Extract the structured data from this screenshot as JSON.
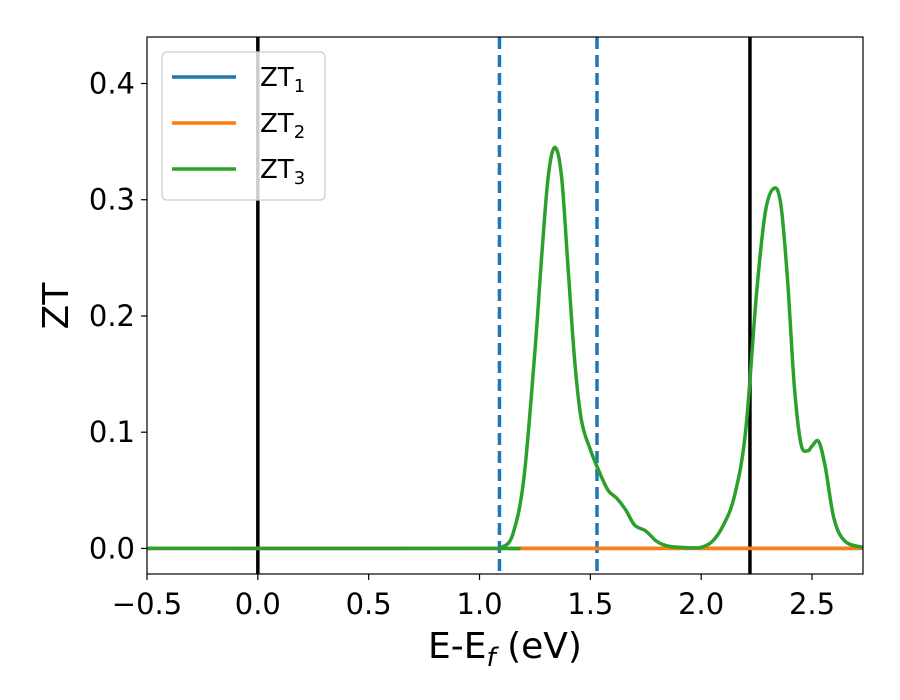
{
  "chart_data": {
    "type": "line",
    "xlabel_main": "E-E",
    "xlabel_sub": "f",
    "xlabel_unit": " (eV)",
    "ylabel": "ZT",
    "xlim": [
      -0.5,
      2.73
    ],
    "ylim": [
      -0.022,
      0.44
    ],
    "grid": false,
    "legend_position": "top-left",
    "x_ticks": [
      {
        "value": -0.5,
        "label": "−0.5"
      },
      {
        "value": 0.0,
        "label": "0.0"
      },
      {
        "value": 0.5,
        "label": "0.5"
      },
      {
        "value": 1.0,
        "label": "1.0"
      },
      {
        "value": 1.5,
        "label": "1.5"
      },
      {
        "value": 2.0,
        "label": "2.0"
      },
      {
        "value": 2.5,
        "label": "2.5"
      }
    ],
    "y_ticks": [
      {
        "value": 0.0,
        "label": "0.0"
      },
      {
        "value": 0.1,
        "label": "0.1"
      },
      {
        "value": 0.2,
        "label": "0.2"
      },
      {
        "value": 0.3,
        "label": "0.3"
      },
      {
        "value": 0.4,
        "label": "0.4"
      }
    ],
    "vertical_lines": [
      {
        "x": 0.0,
        "color": "#000000",
        "style": "solid"
      },
      {
        "x": 2.22,
        "color": "#000000",
        "style": "solid"
      },
      {
        "x": 1.09,
        "color": "#1f77b4",
        "style": "dashed"
      },
      {
        "x": 1.53,
        "color": "#1f77b4",
        "style": "dashed"
      }
    ],
    "series": [
      {
        "name_main": "ZT",
        "name_sub": "1",
        "color": "#1f77b4",
        "x": [
          -0.5,
          1.09,
          2.73
        ],
        "y": [
          0.0,
          0.0,
          0.0
        ]
      },
      {
        "name_main": "ZT",
        "name_sub": "2",
        "color": "#ff7f0e",
        "x": [
          -0.5,
          2.73
        ],
        "y": [
          0.0,
          0.0
        ]
      },
      {
        "name_main": "ZT",
        "name_sub": "3",
        "color": "#2ca02c",
        "x": [
          -0.5,
          1.05,
          1.1,
          1.15,
          1.2,
          1.25,
          1.28,
          1.31,
          1.34,
          1.37,
          1.4,
          1.43,
          1.46,
          1.5,
          1.54,
          1.58,
          1.62,
          1.66,
          1.7,
          1.75,
          1.8,
          1.85,
          1.9,
          1.95,
          2.0,
          2.05,
          2.1,
          2.15,
          2.2,
          2.25,
          2.29,
          2.33,
          2.36,
          2.39,
          2.42,
          2.45,
          2.48,
          2.5,
          2.53,
          2.56,
          2.6,
          2.65,
          2.73
        ],
        "y": [
          0.0,
          0.0,
          0.001,
          0.012,
          0.06,
          0.17,
          0.25,
          0.32,
          0.345,
          0.32,
          0.24,
          0.16,
          0.11,
          0.085,
          0.066,
          0.05,
          0.043,
          0.033,
          0.02,
          0.015,
          0.006,
          0.002,
          0.001,
          0.0005,
          0.001,
          0.006,
          0.02,
          0.045,
          0.1,
          0.22,
          0.29,
          0.31,
          0.295,
          0.23,
          0.14,
          0.09,
          0.084,
          0.088,
          0.092,
          0.07,
          0.025,
          0.006,
          0.001
        ]
      }
    ]
  }
}
